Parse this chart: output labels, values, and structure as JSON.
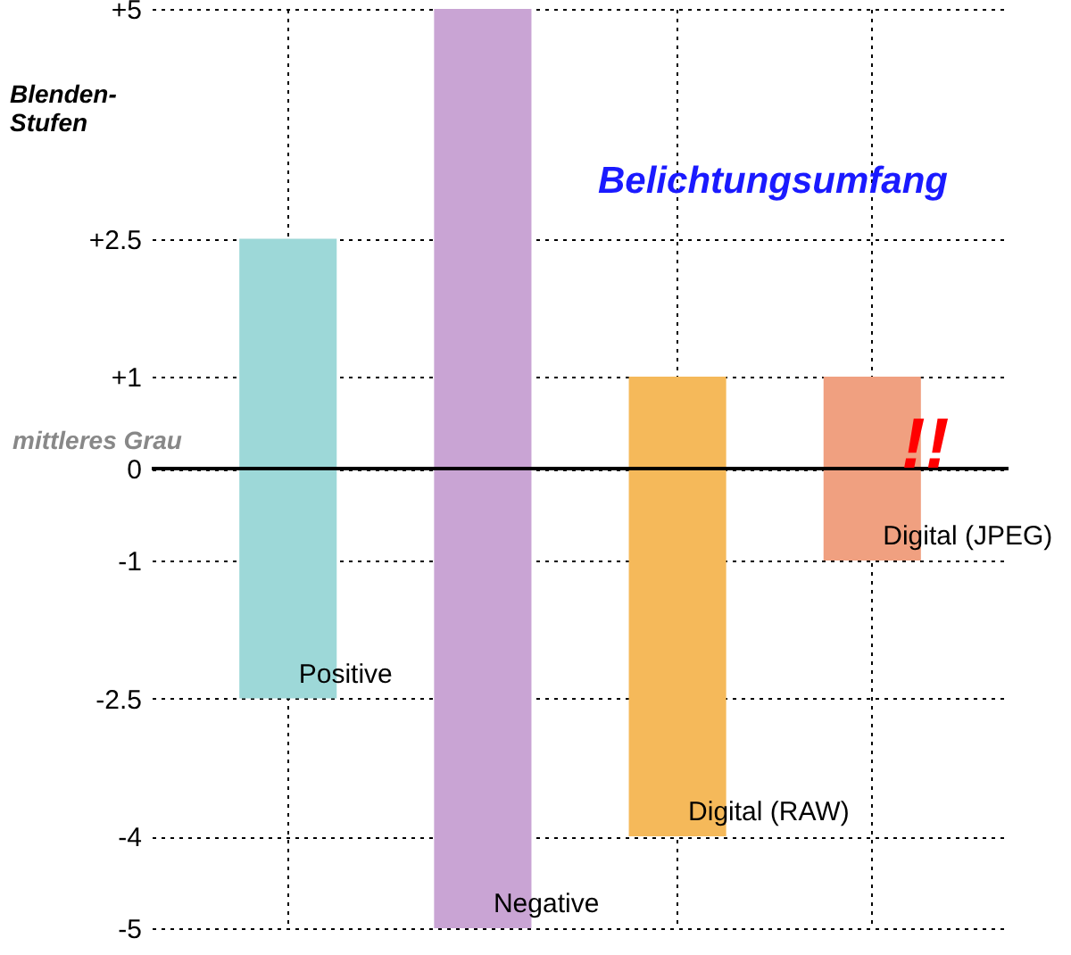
{
  "chart_data": {
    "type": "bar",
    "title": "Belichtungsumfang",
    "ylabel": "Blenden-Stufen",
    "categories": [
      "Positive",
      "Negative",
      "Digital (RAW)",
      "Digital (JPEG)"
    ],
    "base": [
      -2.5,
      -5,
      -4,
      -1
    ],
    "values": [
      5,
      10,
      5,
      2
    ],
    "colors": [
      "#9dd8d8",
      "#c9a4d4",
      "#f5b95a",
      "#f0a080"
    ],
    "ylim": [
      -5,
      5
    ],
    "yticks": [
      {
        "value": 5,
        "label": "+5"
      },
      {
        "value": 2.5,
        "label": "+2.5"
      },
      {
        "value": 1,
        "label": "+1"
      },
      0,
      -1,
      -2.5,
      -4,
      -5
    ],
    "ref_lines": [
      {
        "axis": "y",
        "value": 0,
        "label": "mittleres Grau",
        "color": "#000000"
      }
    ],
    "annotations": [
      "!!"
    ],
    "grid": true,
    "tick_labels": "y"
  }
}
